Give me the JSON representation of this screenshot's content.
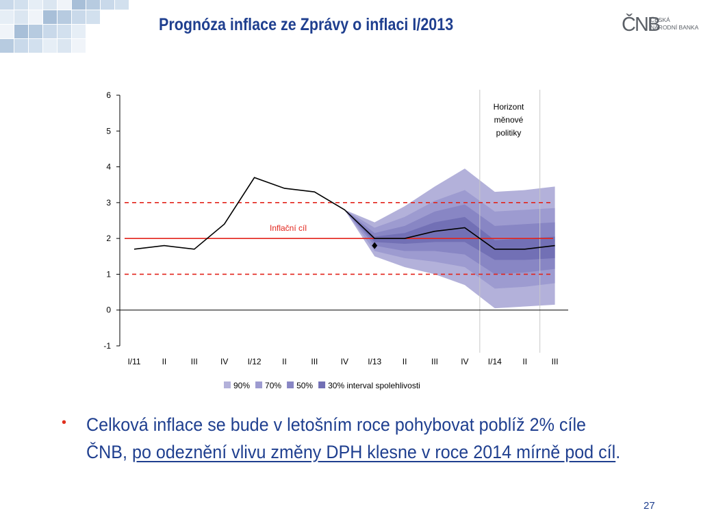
{
  "slide": {
    "title": "Prognóza inflace ze Zprávy o inflaci I/2013",
    "logo": {
      "mark": "ČNB",
      "line1": "ČESKÁ",
      "line2": "NÁRODNÍ BANKA"
    },
    "bullet": {
      "text_before": "Celková inflace se bude v letošním roce pohybovat poblíž 2% cíle ČNB, ",
      "text_underlined": "po odeznění vlivu změny DPH klesne v roce 2014 mírně pod cíl",
      "text_after": "."
    },
    "page_number": "27"
  },
  "colors": {
    "title": "#1f3f8f",
    "bullet": "#e0301e",
    "band_90": "#b3b1da",
    "band_70": "#9d9bd0",
    "band_50": "#8886c4",
    "band_30": "#7270b5",
    "target_line": "#e2231a",
    "actual_line": "#000000"
  },
  "chart_data": {
    "type": "area",
    "categories": [
      "I/11",
      "II",
      "III",
      "IV",
      "I/12",
      "II",
      "III",
      "IV",
      "I/13",
      "II",
      "III",
      "IV",
      "I/14",
      "II",
      "III"
    ],
    "ylim": [
      -1,
      6
    ],
    "yticks": [
      -1,
      0,
      1,
      2,
      3,
      4,
      5,
      6
    ],
    "actual_line": [
      1.7,
      1.8,
      1.7,
      2.4,
      3.7,
      3.4,
      3.3,
      2.8,
      2.0,
      2.0,
      2.2,
      2.3,
      1.7,
      1.7,
      1.8
    ],
    "marker": {
      "category": "I/13",
      "value": 1.8
    },
    "target": {
      "value": 2.0,
      "label": "Inflační cíl",
      "tolerance_band": [
        1.0,
        3.0
      ]
    },
    "horizon": {
      "label_lines": [
        "Horizont",
        "měnové",
        "politiky"
      ],
      "between": [
        "II",
        "III"
      ]
    },
    "fan_start": "IV",
    "fan_bands": [
      {
        "name": "90%",
        "lower": [
          2.8,
          1.5,
          1.2,
          1.0,
          0.7,
          0.05,
          0.1,
          0.15
        ],
        "upper": [
          2.8,
          2.45,
          2.9,
          3.45,
          3.95,
          3.3,
          3.35,
          3.45
        ]
      },
      {
        "name": "70%",
        "lower": [
          2.8,
          1.65,
          1.45,
          1.35,
          1.2,
          0.6,
          0.65,
          0.75
        ],
        "upper": [
          2.8,
          2.3,
          2.6,
          3.05,
          3.35,
          2.75,
          2.8,
          2.85
        ]
      },
      {
        "name": "50%",
        "lower": [
          2.8,
          1.8,
          1.65,
          1.65,
          1.55,
          1.0,
          1.05,
          1.15
        ],
        "upper": [
          2.8,
          2.15,
          2.35,
          2.75,
          2.95,
          2.35,
          2.4,
          2.45
        ]
      },
      {
        "name": "30%",
        "lower": [
          2.8,
          1.9,
          1.85,
          1.9,
          1.9,
          1.4,
          1.4,
          1.45
        ],
        "upper": [
          2.8,
          2.05,
          2.15,
          2.45,
          2.6,
          1.95,
          2.0,
          2.05
        ]
      }
    ],
    "legend": [
      {
        "label": "90%"
      },
      {
        "label": "70%"
      },
      {
        "label": "50%"
      },
      {
        "label": "30% interval spolehlivosti"
      }
    ],
    "legend_position": "bottom",
    "grid": false
  }
}
